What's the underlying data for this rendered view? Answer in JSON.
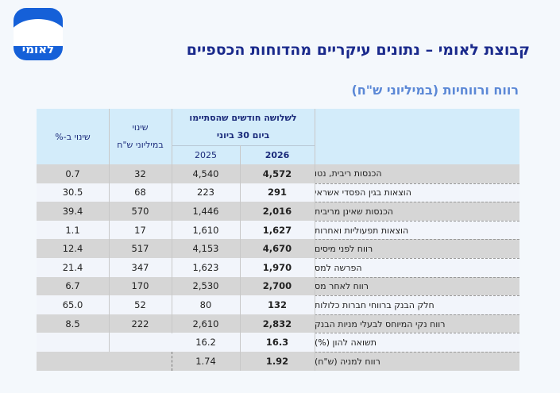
{
  "logo": {
    "text": "לאומי"
  },
  "title": "קבוצת לאומי – נתונים עיקריים מהדוחות הכספיים",
  "subtitle": "רווח ורווחיות (במיליוני ש\"ח)",
  "table": {
    "header": {
      "period_line1": "לשלושה חודשים שהסתיימו",
      "period_line2": "ביום 30 ביוני",
      "year_current": "2026",
      "year_prior": "2025",
      "change_amount_line1": "שינוי",
      "change_amount_line2": "במיליוני ש\"ח",
      "change_pct": "שינוי ב-%"
    },
    "rows": [
      {
        "label": "הכנסות ריבית, נטו",
        "current": "4,572",
        "prior": "4,540",
        "change": "32",
        "pct": "0.7"
      },
      {
        "label": "הוצאות בגין הפסדי אשראי",
        "current": "291",
        "prior": "223",
        "change": "68",
        "pct": "30.5"
      },
      {
        "label": "הכנסות שאינן מריבית",
        "current": "2,016",
        "prior": "1,446",
        "change": "570",
        "pct": "39.4"
      },
      {
        "label": "הוצאות תפעוליות ואחרות",
        "current": "1,627",
        "prior": "1,610",
        "change": "17",
        "pct": "1.1"
      },
      {
        "label": "רווח לפני מיסים",
        "current": "4,670",
        "prior": "4,153",
        "change": "517",
        "pct": "12.4"
      },
      {
        "label": "הפרשה למס",
        "current": "1,970",
        "prior": "1,623",
        "change": "347",
        "pct": "21.4"
      },
      {
        "label": "רווח לאחר מס",
        "current": "2,700",
        "prior": "2,530",
        "change": "170",
        "pct": "6.7"
      },
      {
        "label": "חלק הבנק ברווחי חברות כלולות",
        "current": "132",
        "prior": "80",
        "change": "52",
        "pct": "65.0"
      },
      {
        "label": "רווח נקי המיוחס לבעלי מניות הבנק",
        "current": "2,832",
        "prior": "2,610",
        "change": "222",
        "pct": "8.5"
      },
      {
        "label": "תשואה להון (%)",
        "current": "16.3",
        "prior": "16.2",
        "change": "",
        "pct": ""
      },
      {
        "label": "רווח למניה (ש\"ח)",
        "current": "1.92",
        "prior": "1.74",
        "change": "",
        "pct": ""
      }
    ],
    "colors": {
      "header_bg": "#d3ecfa",
      "row_shaded": "#d6d6d6",
      "row_light": "#f2f5fb"
    }
  }
}
